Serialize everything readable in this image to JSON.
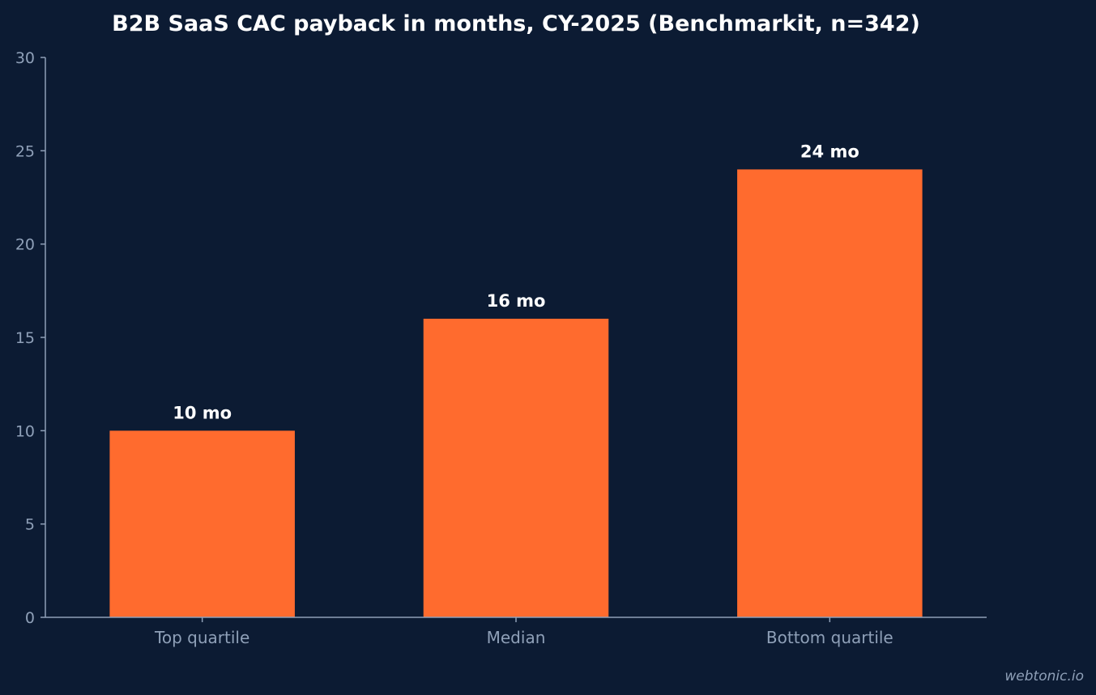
{
  "chart_data": {
    "type": "bar",
    "title": "B2B SaaS CAC payback in months, CY-2025 (Benchmarkit, n=342)",
    "categories": [
      "Top quartile",
      "Median",
      "Bottom quartile"
    ],
    "values": [
      10,
      16,
      24
    ],
    "data_labels": [
      "10 mo",
      "16 mo",
      "24 mo"
    ],
    "ylim": [
      0,
      30
    ],
    "yticks": [
      0,
      5,
      10,
      15,
      20,
      25,
      30
    ],
    "xlabel": "",
    "ylabel": "",
    "grid": false,
    "colors": {
      "bar": "#ff6b2e",
      "background": "#0c1b33",
      "axis": "#8fa0b8",
      "text": "#ffffff"
    }
  },
  "watermark": "webtonic.io"
}
